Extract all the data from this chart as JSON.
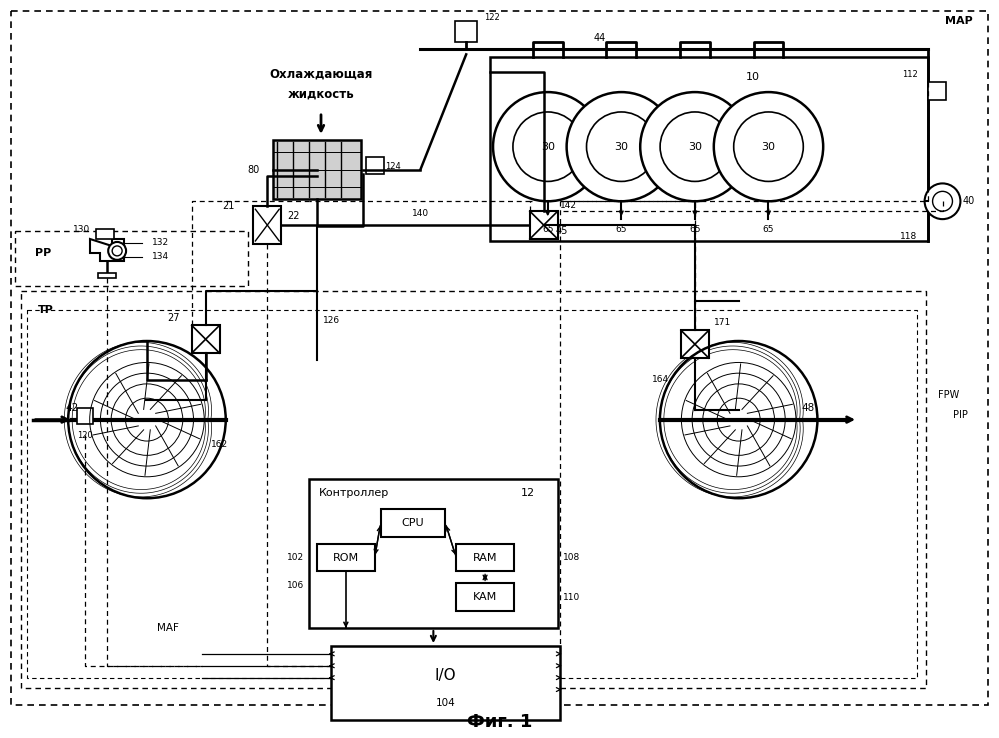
{
  "bg_color": "#ffffff",
  "fig_width": 9.99,
  "fig_height": 7.38,
  "title": "Фиг. 1",
  "cooling_text_1": "Охлаждающая",
  "cooling_text_2": "жидкость",
  "controller_text": "Контроллер",
  "MAF_text": "MAF",
  "MAP_text": "MAP",
  "PP_text": "PP",
  "TP_text": "TP",
  "FPW_text": "FPW",
  "PIP_text": "PIP"
}
